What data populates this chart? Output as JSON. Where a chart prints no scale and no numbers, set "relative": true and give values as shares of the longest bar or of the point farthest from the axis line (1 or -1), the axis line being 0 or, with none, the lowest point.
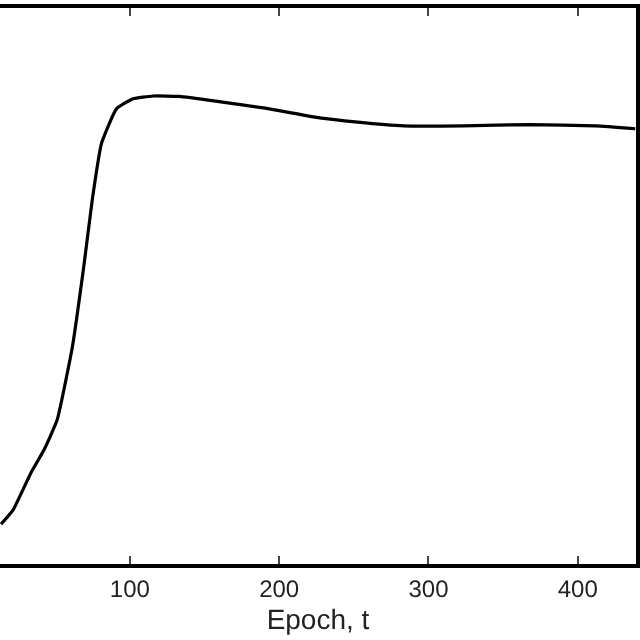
{
  "chart_data": {
    "type": "line",
    "xlabel": "Epoch, t",
    "relative": true,
    "xlim": [
      13,
      439
    ],
    "xticks": [
      100,
      200,
      300,
      400
    ],
    "marker": "none",
    "line_style": "solid",
    "series": [
      {
        "color": "#000000",
        "x": [
          13.7,
          21.7,
          33.6,
          42.5,
          51.3,
          61.5,
          69.1,
          74.8,
          81,
          91.1,
          102.2,
          115.5,
          133.2,
          159.7,
          190.7,
          221.7,
          252.7,
          283.6,
          323.4,
          367.7,
          412,
          438.5
        ],
        "values": [
          0.085,
          0.115,
          0.194,
          0.244,
          0.308,
          0.464,
          0.635,
          0.778,
          0.899,
          0.973,
          0.994,
          1,
          0.999,
          0.988,
          0.974,
          0.956,
          0.944,
          0.936,
          0.936,
          0.939,
          0.936,
          0.93
        ]
      }
    ]
  }
}
